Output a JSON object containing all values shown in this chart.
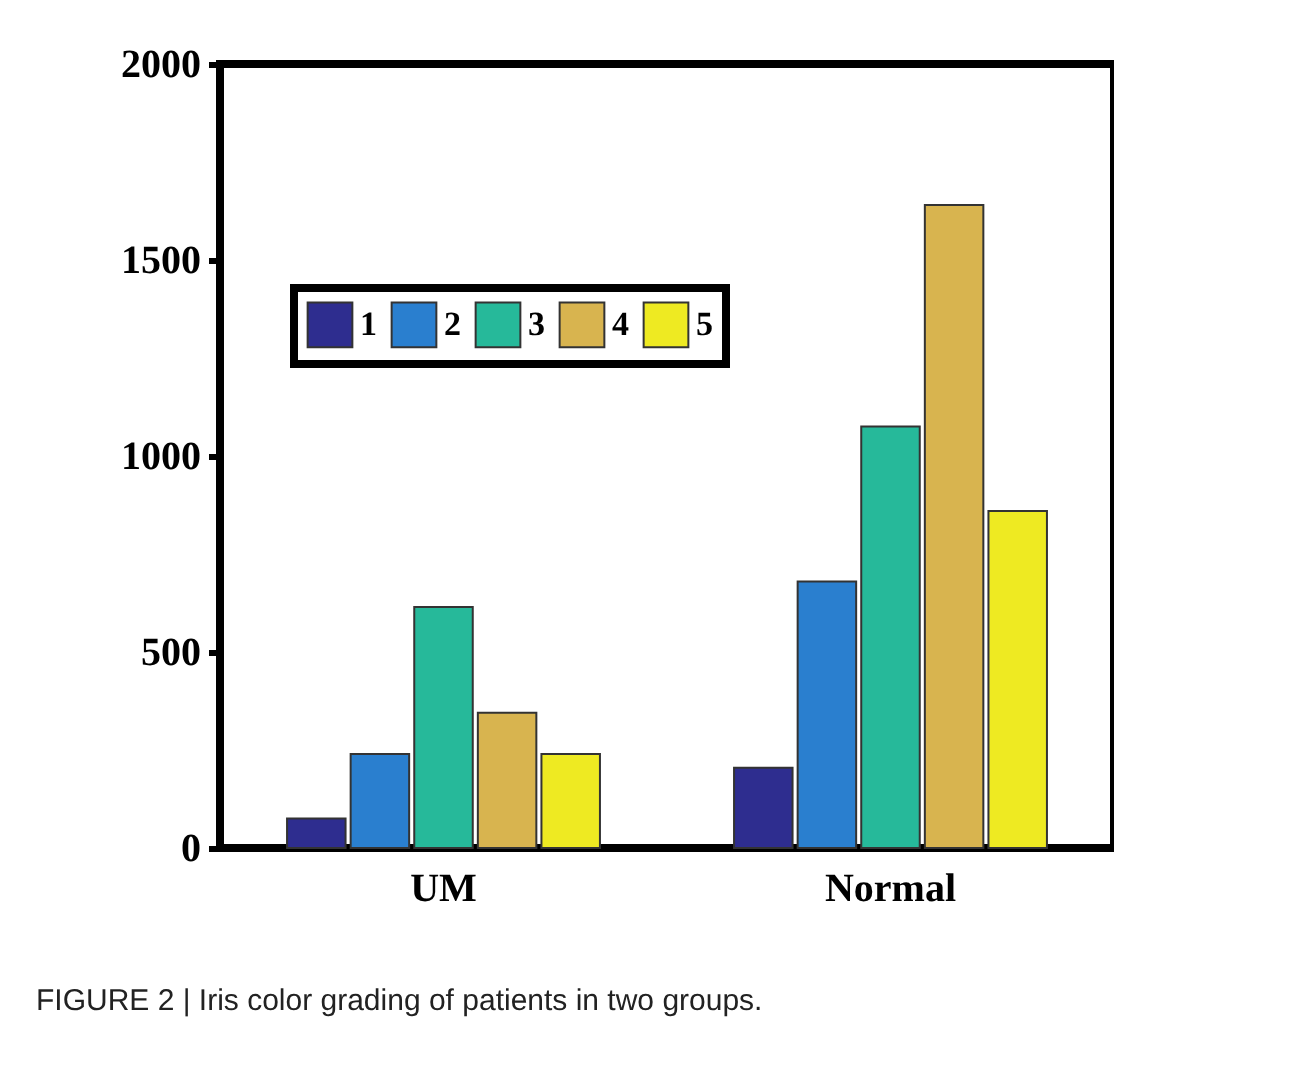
{
  "chart_data": {
    "type": "bar",
    "categories": [
      "UM",
      "Normal"
    ],
    "series": [
      {
        "name": "1",
        "color": "#2e2d8f",
        "values": [
          75,
          205
        ]
      },
      {
        "name": "2",
        "color": "#2a7fcf",
        "values": [
          240,
          680
        ]
      },
      {
        "name": "3",
        "color": "#26b99a",
        "values": [
          615,
          1075
        ]
      },
      {
        "name": "4",
        "color": "#d8b44f",
        "values": [
          345,
          1640
        ]
      },
      {
        "name": "5",
        "color": "#eeea22",
        "values": [
          240,
          860
        ]
      }
    ],
    "ylim": [
      0,
      2000
    ],
    "yticks": [
      0,
      500,
      1000,
      1500,
      2000
    ],
    "grid": false,
    "legend": "top left",
    "annotations": [
      "FIGURE 2 | Iris color grading of patients in two groups."
    ]
  }
}
